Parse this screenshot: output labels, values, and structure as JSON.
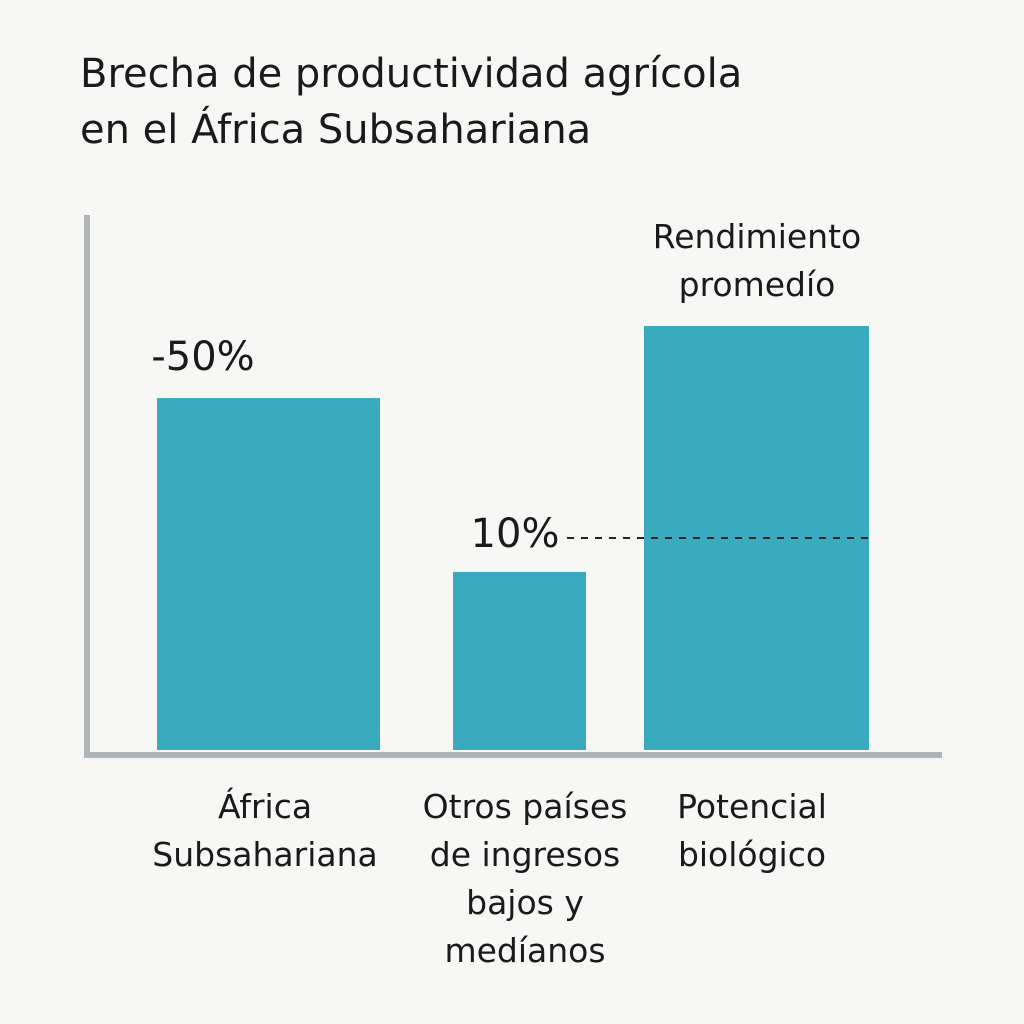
{
  "chart_data": {
    "type": "bar",
    "title": "Brecha de productividad agrícola\nen el África Subsahariana",
    "categories": [
      "África\nSubsahariana",
      "Otros países\nde ingresos\nbajos y\nmedíanos",
      "Potencial\nbiológico"
    ],
    "values": [
      83,
      42,
      100
    ],
    "color": "#3aabbf",
    "ylim": [
      0,
      126
    ],
    "annotations": [
      {
        "text": "-50%",
        "category": 0
      },
      {
        "text": "10%",
        "category": 1
      },
      {
        "text": "Rendimiento\npromedío",
        "category": 2
      }
    ],
    "reference_line": 50
  }
}
